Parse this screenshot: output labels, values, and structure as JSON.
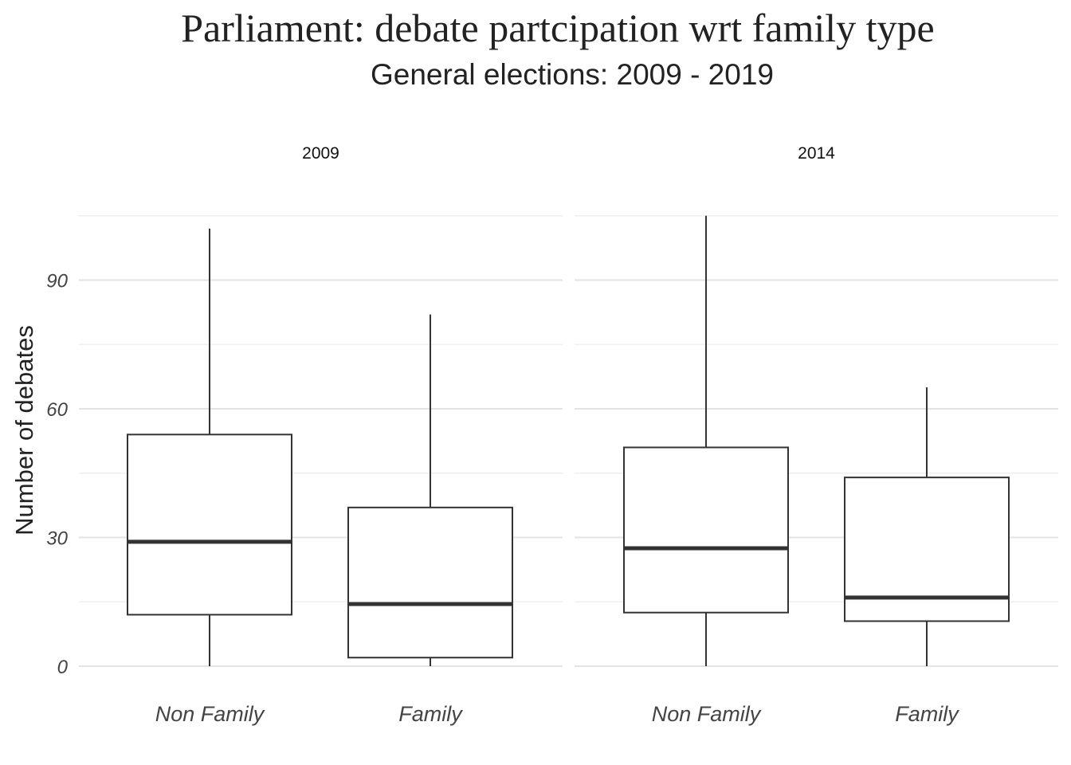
{
  "chart_data": {
    "type": "boxplot",
    "title": "Parliament: debate partcipation wrt family type",
    "subtitle": "General elections: 2009 - 2019",
    "ylabel": "Number of debates",
    "xlabel": "",
    "ylim": [
      0,
      105
    ],
    "yticks": [
      0,
      30,
      60,
      90
    ],
    "yminor": [
      15,
      45,
      75,
      105
    ],
    "grid": true,
    "categories": [
      "Non Family",
      "Family"
    ],
    "panels": [
      {
        "label": "2009",
        "boxes": [
          {
            "category": "Non Family",
            "min": 0,
            "q1": 12,
            "median": 29,
            "q3": 54,
            "max": 102
          },
          {
            "category": "Family",
            "min": 0,
            "q1": 2,
            "median": 14.5,
            "q3": 37,
            "max": 82
          }
        ]
      },
      {
        "label": "2014",
        "boxes": [
          {
            "category": "Non Family",
            "min": 0,
            "q1": 12.5,
            "median": 27.5,
            "q3": 51,
            "max": 105
          },
          {
            "category": "Family",
            "min": 0,
            "q1": 10.5,
            "median": 16,
            "q3": 44,
            "max": 65
          }
        ]
      }
    ]
  }
}
